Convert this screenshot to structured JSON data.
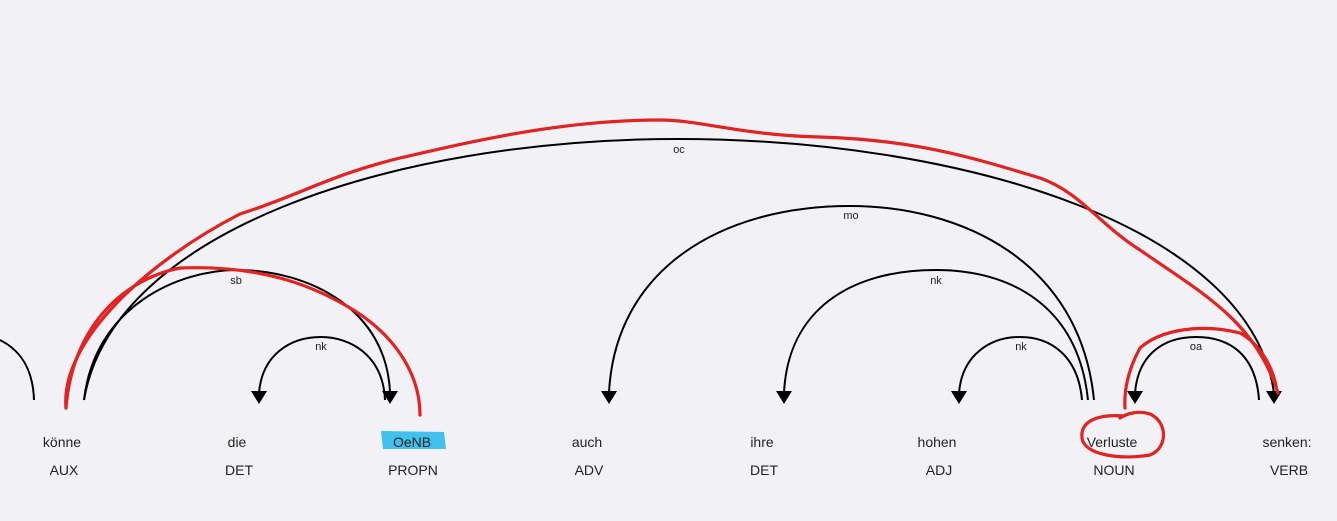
{
  "colors": {
    "background": "#f2f1f5",
    "arc": "#000000",
    "annotation_stroke": "#e32222",
    "highlight": "#41c1ee"
  },
  "tokens": [
    {
      "text": "könne",
      "tag": "AUX"
    },
    {
      "text": "die",
      "tag": "DET"
    },
    {
      "text": "OeNB",
      "tag": "PROPN"
    },
    {
      "text": "auch",
      "tag": "ADV"
    },
    {
      "text": "ihre",
      "tag": "DET"
    },
    {
      "text": "hohen",
      "tag": "ADJ"
    },
    {
      "text": "Verluste",
      "tag": "NOUN"
    },
    {
      "text": "senken:",
      "tag": "VERB"
    }
  ],
  "arcs": [
    {
      "label": "oc",
      "from": 0,
      "to": 7
    },
    {
      "label": "sb",
      "from": 0,
      "to": 2
    },
    {
      "label": "nk",
      "from": 2,
      "to": 1
    },
    {
      "label": "mo",
      "from": 6,
      "to": 3
    },
    {
      "label": "nk",
      "from": 6,
      "to": 4
    },
    {
      "label": "nk",
      "from": 6,
      "to": 5
    },
    {
      "label": "oa",
      "from": 7,
      "to": 6
    }
  ],
  "annotations": {
    "highlighted_token": 2,
    "circled_token": 6
  }
}
